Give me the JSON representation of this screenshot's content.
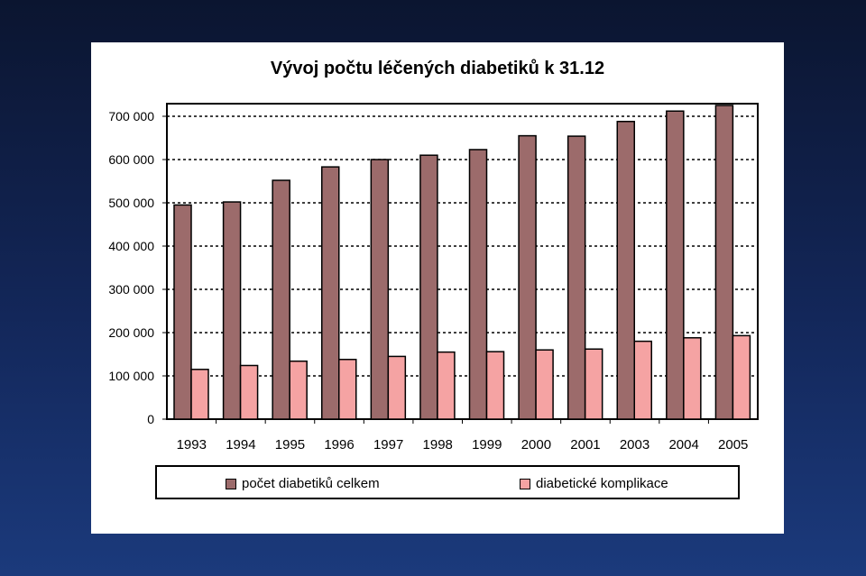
{
  "chart_data": {
    "type": "bar",
    "title": "Vývoj počtu léčených diabetiků k 31.12",
    "xlabel": "",
    "ylabel": "",
    "categories": [
      "1993",
      "1994",
      "1995",
      "1996",
      "1997",
      "1998",
      "1999",
      "2000",
      "2001",
      "2003",
      "2004",
      "2005"
    ],
    "series": [
      {
        "name": "počet diabetiků celkem",
        "color": "#9c6b6b",
        "values": [
          495000,
          502000,
          552000,
          583000,
          600000,
          610000,
          623000,
          655000,
          654000,
          688000,
          712000,
          725000
        ]
      },
      {
        "name": "diabetické komplikace",
        "color": "#f5a3a3",
        "values": [
          115000,
          124000,
          134000,
          138000,
          145000,
          155000,
          156000,
          160000,
          162000,
          180000,
          188000,
          193000
        ]
      }
    ],
    "ylim": [
      0,
      700000
    ],
    "yticks": [
      0,
      100000,
      200000,
      300000,
      400000,
      500000,
      600000,
      700000
    ],
    "ytick_labels": [
      "0",
      "100 000",
      "200 000",
      "300 000",
      "400 000",
      "500 000",
      "600 000",
      "700 000"
    ],
    "grid": "dotted horizontal",
    "legend_position": "bottom"
  }
}
